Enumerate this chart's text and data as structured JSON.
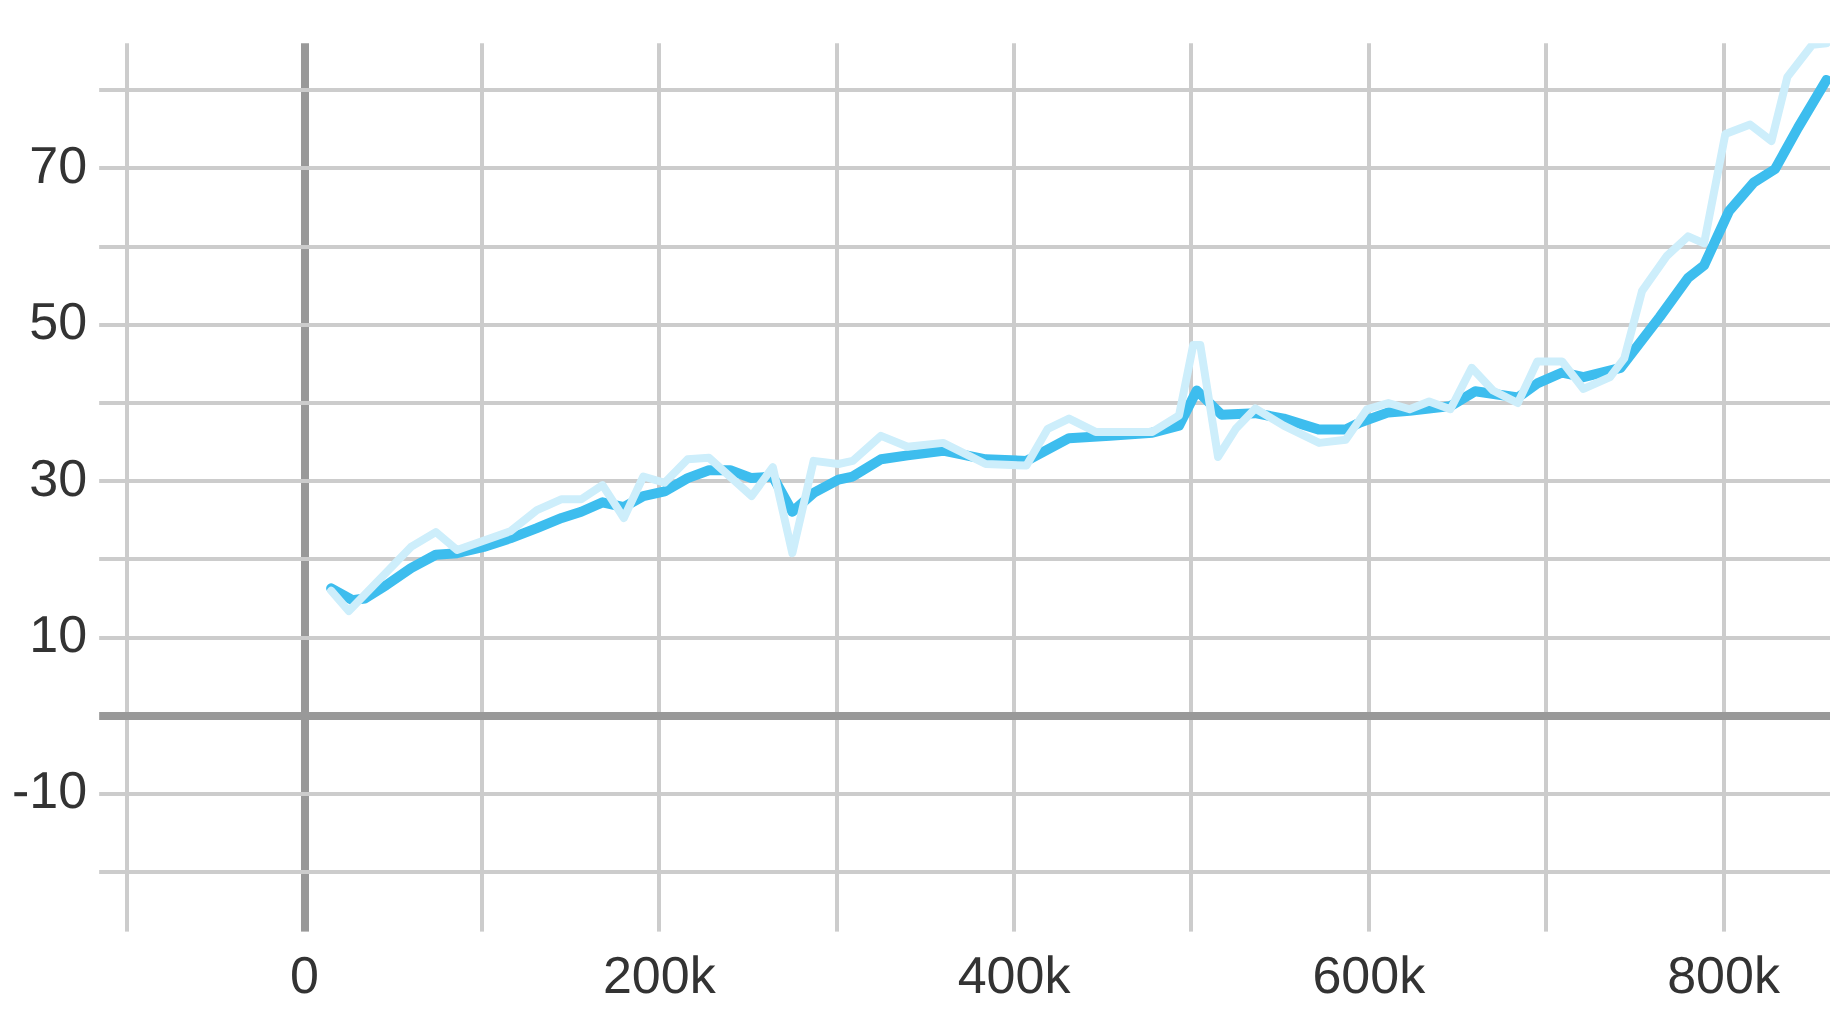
{
  "chart_data": {
    "type": "line",
    "xlim": [
      -100000,
      860000
    ],
    "ylim": [
      -24,
      86
    ],
    "xticks": [
      {
        "value": -100000,
        "label": null
      },
      {
        "value": 0,
        "label": "0"
      },
      {
        "value": 100000,
        "label": null
      },
      {
        "value": 200000,
        "label": "200k"
      },
      {
        "value": 300000,
        "label": null
      },
      {
        "value": 400000,
        "label": "400k"
      },
      {
        "value": 500000,
        "label": null
      },
      {
        "value": 600000,
        "label": "600k"
      },
      {
        "value": 700000,
        "label": null
      },
      {
        "value": 800000,
        "label": "800k"
      }
    ],
    "yticks": [
      {
        "value": -20,
        "label": null
      },
      -10,
      {
        "value": 0,
        "label": null
      },
      10,
      {
        "value": 20,
        "label": null
      },
      30,
      {
        "value": 40,
        "label": null
      },
      50,
      {
        "value": 60,
        "label": null
      },
      70,
      {
        "value": 80,
        "label": null
      }
    ],
    "grid": true,
    "legend": false,
    "marker": "none",
    "line_style": "solid",
    "series": [
      {
        "color": "#cdeefb",
        "x": [
          15000,
          25000,
          60000,
          74000,
          86000,
          116000,
          131000,
          145000,
          156000,
          168000,
          180000,
          191000,
          203000,
          216000,
          228000,
          252000,
          264000,
          275000,
          287000,
          301000,
          309000,
          325000,
          340000,
          360000,
          384000,
          407000,
          419000,
          431000,
          446000,
          478000,
          493000,
          501000,
          505000,
          515000,
          525000,
          536000,
          552000,
          572000,
          587000,
          599000,
          611000,
          623000,
          634000,
          646000,
          658000,
          670000,
          684000,
          695000,
          709000,
          721000,
          736000,
          744000,
          754000,
          768000,
          780000,
          789000,
          801000,
          815000,
          827000,
          836000,
          850000,
          858000
        ],
        "values": [
          16,
          13.4,
          21.6,
          23.5,
          21.2,
          23.6,
          26.3,
          27.7,
          27.7,
          29.5,
          25.3,
          30.6,
          29.8,
          32.8,
          33,
          28.1,
          31.8,
          20.8,
          32.6,
          32.2,
          32.6,
          35.8,
          34.4,
          34.9,
          32.2,
          32,
          36.7,
          38,
          36.3,
          36.3,
          38.4,
          47.4,
          47.4,
          33.1,
          36.7,
          39.3,
          37.1,
          34.9,
          35.3,
          39.2,
          40,
          39.2,
          40.2,
          39.2,
          44.5,
          41.6,
          40,
          45.3,
          45.3,
          41.8,
          43.3,
          45.7,
          54.3,
          58.8,
          61.3,
          60.4,
          74.4,
          75.6,
          73.5,
          81.7,
          85.8,
          86
        ]
      },
      {
        "color": "#3dbdee",
        "x": [
          15000,
          27000,
          34000,
          46000,
          60000,
          74000,
          86000,
          101000,
          116000,
          131000,
          145000,
          156000,
          168000,
          180000,
          191000,
          203000,
          216000,
          228000,
          240000,
          252000,
          264000,
          275000,
          287000,
          301000,
          309000,
          325000,
          340000,
          360000,
          384000,
          407000,
          431000,
          454000,
          478000,
          493000,
          503000,
          517000,
          536000,
          552000,
          572000,
          587000,
          595000,
          611000,
          623000,
          646000,
          660000,
          684000,
          695000,
          709000,
          721000,
          742000,
          764000,
          780000,
          789000,
          803000,
          817000,
          829000,
          842000,
          858000
        ],
        "values": [
          16.3,
          14.8,
          15,
          16.7,
          18.9,
          20.6,
          20.8,
          21.6,
          22.7,
          24,
          25.3,
          26.1,
          27.3,
          26.7,
          28.1,
          28.7,
          30.4,
          31.4,
          31.4,
          30.4,
          30.6,
          26.1,
          28.5,
          30.2,
          30.6,
          32.8,
          33.3,
          33.9,
          32.8,
          32.6,
          35.5,
          35.8,
          36.2,
          37.1,
          41.6,
          38.5,
          38.7,
          38,
          36.6,
          36.6,
          37.5,
          38.8,
          39,
          39.6,
          41.5,
          40.7,
          42.5,
          43.9,
          43.3,
          44.5,
          51,
          56,
          57.6,
          64.5,
          68.2,
          69.9,
          75.2,
          81.3
        ]
      }
    ]
  }
}
